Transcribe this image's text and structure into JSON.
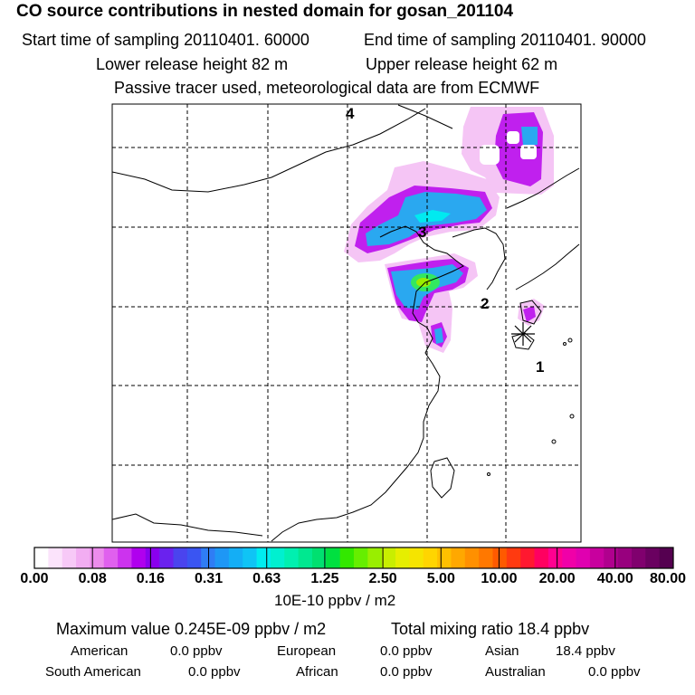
{
  "header": {
    "title": "CO  source contributions in nested domain for gosan_201104",
    "start_time": "Start time of sampling 20110401. 60000",
    "end_time": "End time of sampling 20110401. 90000",
    "lower_release": "Lower release height   82 m",
    "upper_release": "Upper release height   62 m",
    "tracer_note": "Passive tracer used, meteorological data are from ECMWF"
  },
  "chart_data": {
    "type": "heatmap",
    "title": "CO  source contributions in nested domain for gosan_201104",
    "colorbar": {
      "ticks": [
        "0.00",
        "0.08",
        "0.16",
        "0.31",
        "0.63",
        "1.25",
        "2.50",
        "5.00",
        "10.00",
        "20.00",
        "40.00",
        "80.00"
      ],
      "units": "10E-10 ppbv / m2",
      "colors": [
        "#ffffff",
        "#fbe3fb",
        "#f7c9f7",
        "#f2adf2",
        "#ec8cec",
        "#e060ee",
        "#cc33ee",
        "#b000ee",
        "#8a00ee",
        "#6a22ee",
        "#4a44ee",
        "#3a55f2",
        "#2f7df5",
        "#1e97f5",
        "#14aef5",
        "#0fc4f5",
        "#00ecf0",
        "#00f0d0",
        "#00f0b0",
        "#00e890",
        "#00e070",
        "#00e040",
        "#33e800",
        "#66ee00",
        "#99ee00",
        "#c8ee00",
        "#e6ee00",
        "#f5e400",
        "#ffd500",
        "#ffc000",
        "#ffa800",
        "#ff9000",
        "#ff7800",
        "#ff5a00",
        "#ff3a10",
        "#ff1830",
        "#ff0060",
        "#ff0090",
        "#f000a8",
        "#e000b0",
        "#c8009e",
        "#b0008e",
        "#98007e",
        "#80006e",
        "#6a0060",
        "#550050"
      ]
    },
    "grid_labels": [
      "4",
      "3",
      "2",
      "1"
    ],
    "release_site_marker": "asterisk",
    "field_levels_in_colorbar_units": {
      "plume_edge": 0.08,
      "plume_body": 0.16,
      "plume_core": 0.4,
      "plume_peak": 2.0
    }
  },
  "summary": {
    "max_value": "Maximum value  0.245E-09 ppbv / m2",
    "total_mixing": "Total mixing ratio       18.4 ppbv",
    "row1": [
      {
        "label": "American",
        "value": "0.0 ppbv"
      },
      {
        "label": "European",
        "value": "0.0 ppbv"
      },
      {
        "label": "Asian",
        "value": "18.4 ppbv"
      }
    ],
    "row2": [
      {
        "label": "South American",
        "value": "0.0 ppbv"
      },
      {
        "label": "African",
        "value": "0.0 ppbv"
      },
      {
        "label": "Australian",
        "value": "0.0 ppbv"
      }
    ]
  }
}
